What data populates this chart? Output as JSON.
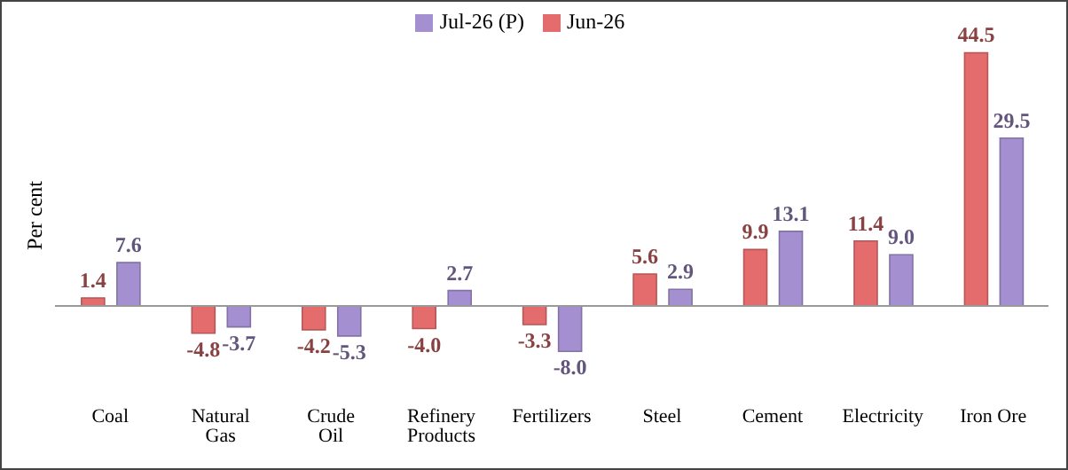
{
  "chart_data": {
    "type": "bar",
    "ylabel": "Per cent",
    "categories": [
      "Coal",
      "Natural Gas",
      "Crude Oil",
      "Refinery Products",
      "Fertilizers",
      "Steel",
      "Cement",
      "Electricity",
      "Iron Ore"
    ],
    "series": [
      {
        "name": "Jun-26",
        "color": "#e46c6c",
        "values": [
          1.4,
          -4.8,
          -4.2,
          -4.0,
          -3.3,
          5.6,
          9.9,
          11.4,
          44.5
        ],
        "value_labels": [
          "1.4",
          "-4.8",
          "-4.2",
          "-4.0",
          "-3.3",
          "5.6",
          "9.9",
          "11.4",
          "44.5"
        ]
      },
      {
        "name": "Jul-26 (P)",
        "color": "#a48fd0",
        "values": [
          7.6,
          -3.7,
          -5.3,
          2.7,
          -8.0,
          2.9,
          13.1,
          9.0,
          29.5
        ],
        "value_labels": [
          "7.6",
          "-3.7",
          "-5.3",
          "2.7",
          "-8.0",
          "2.9",
          "13.1",
          "9.0",
          "29.5"
        ]
      }
    ],
    "legend": "top",
    "grid": false
  }
}
